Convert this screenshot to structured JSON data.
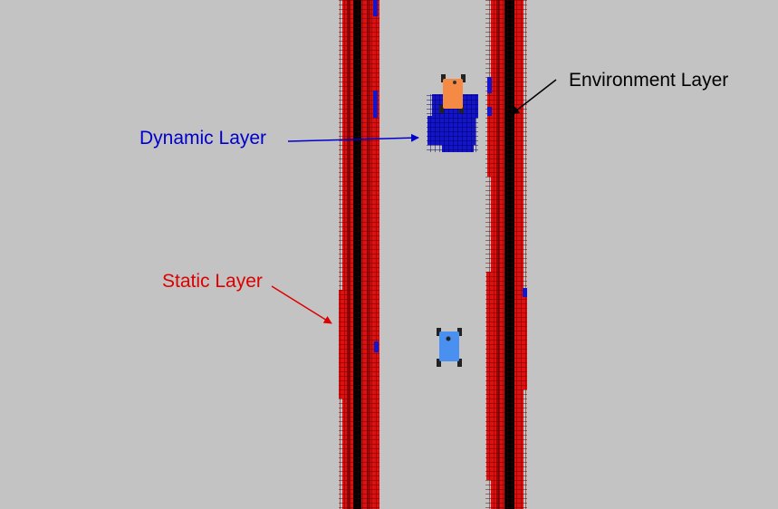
{
  "labels": {
    "environment_layer": "Environment Layer",
    "dynamic_layer": "Dynamic Layer",
    "static_layer": "Static Layer"
  },
  "colors": {
    "background": "#c3c3c3",
    "static_cell": "#e01010",
    "dynamic_cell": "#1414c8",
    "environment_cell": "#000000",
    "grid_line": "#7a0000",
    "robot_orange": "#f58a45",
    "robot_blue": "#4a90f0",
    "environment_label": "#000000",
    "dynamic_label": "#0000cc",
    "static_label": "#dd0000"
  },
  "robots": [
    {
      "name": "orange-robot",
      "color": "robot_orange"
    },
    {
      "name": "blue-robot",
      "color": "robot_blue"
    }
  ]
}
